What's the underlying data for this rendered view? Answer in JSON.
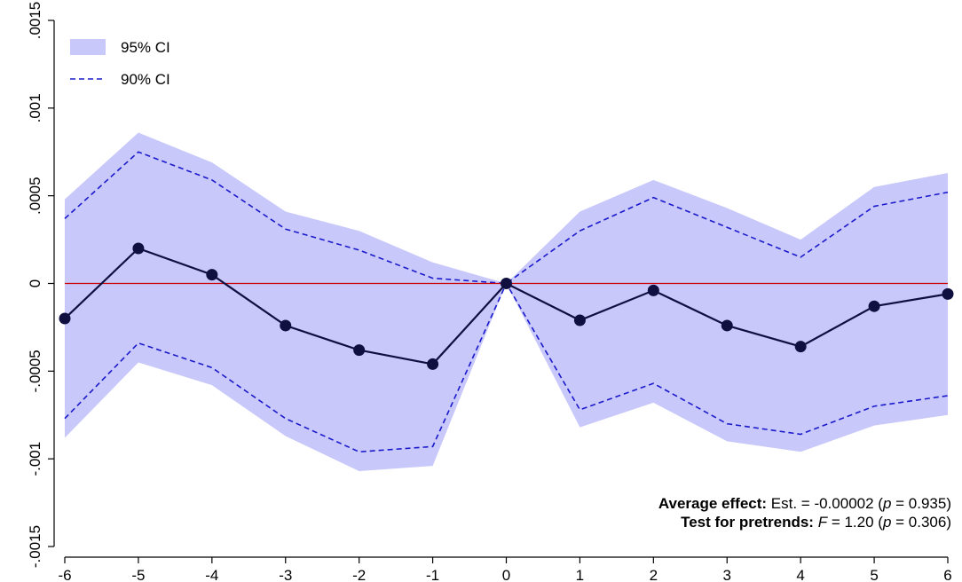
{
  "chart_data": {
    "type": "line",
    "x": [
      -6,
      -5,
      -4,
      -3,
      -2,
      -1,
      0,
      1,
      2,
      3,
      4,
      5,
      6
    ],
    "series": [
      {
        "values": [
          -0.0002,
          0.0002,
          5e-05,
          -0.00024,
          -0.00038,
          -0.00046,
          0,
          -0.00021,
          -4e-05,
          -0.00024,
          -0.00036,
          -0.00013,
          -6e-05
        ]
      }
    ],
    "ci95": {
      "name": "95% CI",
      "lower": [
        -0.00088,
        -0.00045,
        -0.00058,
        -0.00087,
        -0.00107,
        -0.00104,
        0,
        -0.00082,
        -0.00068,
        -0.0009,
        -0.00096,
        -0.00081,
        -0.00075
      ],
      "upper": [
        0.00048,
        0.00086,
        0.00069,
        0.00041,
        0.0003,
        0.00012,
        0,
        0.00041,
        0.00059,
        0.00043,
        0.00025,
        0.00055,
        0.00063
      ]
    },
    "ci90": {
      "name": "90% CI",
      "lower": [
        -0.00077,
        -0.00034,
        -0.00048,
        -0.00077,
        -0.00096,
        -0.00093,
        0,
        -0.00072,
        -0.00057,
        -0.0008,
        -0.00086,
        -0.0007,
        -0.00064
      ],
      "upper": [
        0.00037,
        0.00075,
        0.00059,
        0.00031,
        0.00019,
        3e-05,
        0,
        0.0003,
        0.00049,
        0.00032,
        0.00015,
        0.00044,
        0.00052
      ]
    },
    "xticks": [
      -6,
      -5,
      -4,
      -3,
      -2,
      -1,
      0,
      1,
      2,
      3,
      4,
      5,
      6
    ],
    "xtick_labels": [
      "-6",
      "-5",
      "-4",
      "-3",
      "-2",
      "-1",
      "0",
      "1",
      "2",
      "3",
      "4",
      "5",
      "6"
    ],
    "yticks": [
      -0.0015,
      -0.001,
      -0.0005,
      0,
      0.0005,
      0.001,
      0.0015
    ],
    "ytick_labels": [
      "-.0015",
      "-.001",
      "-.0005",
      "0",
      ".0005",
      ".001",
      ".0015"
    ],
    "xlim": [
      -6,
      6
    ],
    "ylim": [
      -0.0015,
      0.0015
    ],
    "reference_line": {
      "y": 0,
      "color": "#cc0000"
    },
    "legend": {
      "placement": "top-left",
      "entries": [
        "95% CI",
        "90% CI"
      ]
    },
    "annotations": {
      "line1_bold": "Average effect:",
      "line1_rest": " Est. = -0.00002 (",
      "line1_p": "p",
      "line1_tail": " = 0.935)",
      "line2_bold": "Test for pretrends:",
      "line2_F": "F",
      "line2_mid": " = 1.20 (",
      "line2_p": "p",
      "line2_tail": " = 0.306)"
    },
    "colors": {
      "ci95_fill": "#c8c8fa",
      "ci90_line": "#1a1acc",
      "point_line": "#101040",
      "zero_line": "#cc0000"
    },
    "grid": false
  }
}
